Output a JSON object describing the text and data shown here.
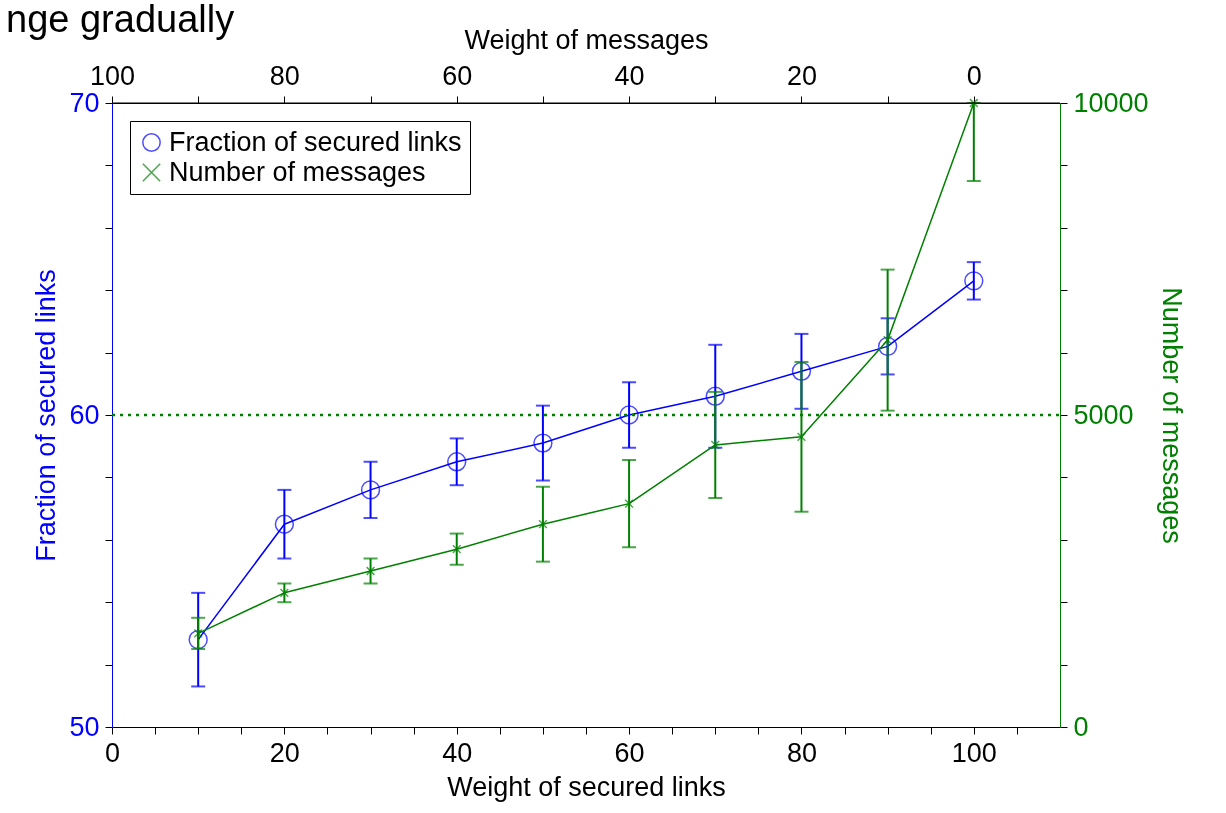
{
  "chart_data": {
    "type": "line",
    "title": "nge gradually",
    "xlabel": "Weight of secured links",
    "x2label": "Weight of messages",
    "ylabel": "Fraction of secured links",
    "y2label": "Number of messages",
    "x": [
      10,
      20,
      30,
      40,
      50,
      60,
      70,
      80,
      90,
      100
    ],
    "xlim": [
      0,
      110
    ],
    "xticks": [
      0,
      {
        "value": 5,
        "label": null
      },
      {
        "value": 10,
        "label": null
      },
      {
        "value": 15,
        "label": null
      },
      20,
      {
        "value": 25,
        "label": null
      },
      {
        "value": 30,
        "label": null
      },
      {
        "value": 35,
        "label": null
      },
      40,
      {
        "value": 45,
        "label": null
      },
      {
        "value": 50,
        "label": null
      },
      {
        "value": 55,
        "label": null
      },
      60,
      {
        "value": 65,
        "label": null
      },
      {
        "value": 70,
        "label": null
      },
      {
        "value": 75,
        "label": null
      },
      80,
      {
        "value": 85,
        "label": null
      },
      {
        "value": 90,
        "label": null
      },
      {
        "value": 95,
        "label": null
      },
      100,
      {
        "value": 105,
        "label": null
      }
    ],
    "x2lim": [
      100,
      -10
    ],
    "x2ticks": [
      100,
      {
        "value": 90,
        "label": null
      },
      80,
      {
        "value": 70,
        "label": null
      },
      60,
      {
        "value": 50,
        "label": null
      },
      40,
      {
        "value": 30,
        "label": null
      },
      20,
      {
        "value": 10,
        "label": null
      },
      0
    ],
    "ylim": [
      50,
      70
    ],
    "yticks": [
      50,
      {
        "value": 52,
        "label": null
      },
      {
        "value": 54,
        "label": null
      },
      {
        "value": 56,
        "label": null
      },
      {
        "value": 58,
        "label": null
      },
      60,
      {
        "value": 62,
        "label": null
      },
      {
        "value": 64,
        "label": null
      },
      {
        "value": 66,
        "label": null
      },
      {
        "value": 68,
        "label": null
      },
      70
    ],
    "y2lim": [
      0,
      10000
    ],
    "y2ticks": [
      0,
      {
        "value": 1000,
        "label": null
      },
      {
        "value": 2000,
        "label": null
      },
      {
        "value": 3000,
        "label": null
      },
      {
        "value": 4000,
        "label": null
      },
      5000,
      {
        "value": 6000,
        "label": null
      },
      {
        "value": 7000,
        "label": null
      },
      {
        "value": 8000,
        "label": null
      },
      {
        "value": 9000,
        "label": null
      },
      10000
    ],
    "series": [
      {
        "name": "Fraction of secured links",
        "color": "#0000ff",
        "marker": "circle",
        "values": [
          52.8,
          56.5,
          57.6,
          58.5,
          59.1,
          60.0,
          60.6,
          61.4,
          62.2,
          64.3
        ],
        "errors": [
          1.5,
          1.1,
          0.9,
          0.75,
          1.2,
          1.05,
          1.65,
          1.2,
          0.9,
          0.6
        ]
      },
      {
        "name": "Number of messages",
        "color": "#008000",
        "marker": "cross",
        "axis": "y2",
        "values": [
          1500,
          2150,
          2500,
          2850,
          3250,
          3580,
          4520,
          4650,
          6200,
          10000
        ],
        "errors": [
          250,
          150,
          200,
          250,
          600,
          700,
          850,
          1200,
          1130,
          [
            8750,
            10000
          ]
        ]
      }
    ],
    "ref_lines": [
      {
        "axis": "y",
        "value": 60,
        "color": "#008000",
        "line_style": "dotted"
      }
    ],
    "legend": "top left",
    "grid": false,
    "line_style": "solid"
  }
}
